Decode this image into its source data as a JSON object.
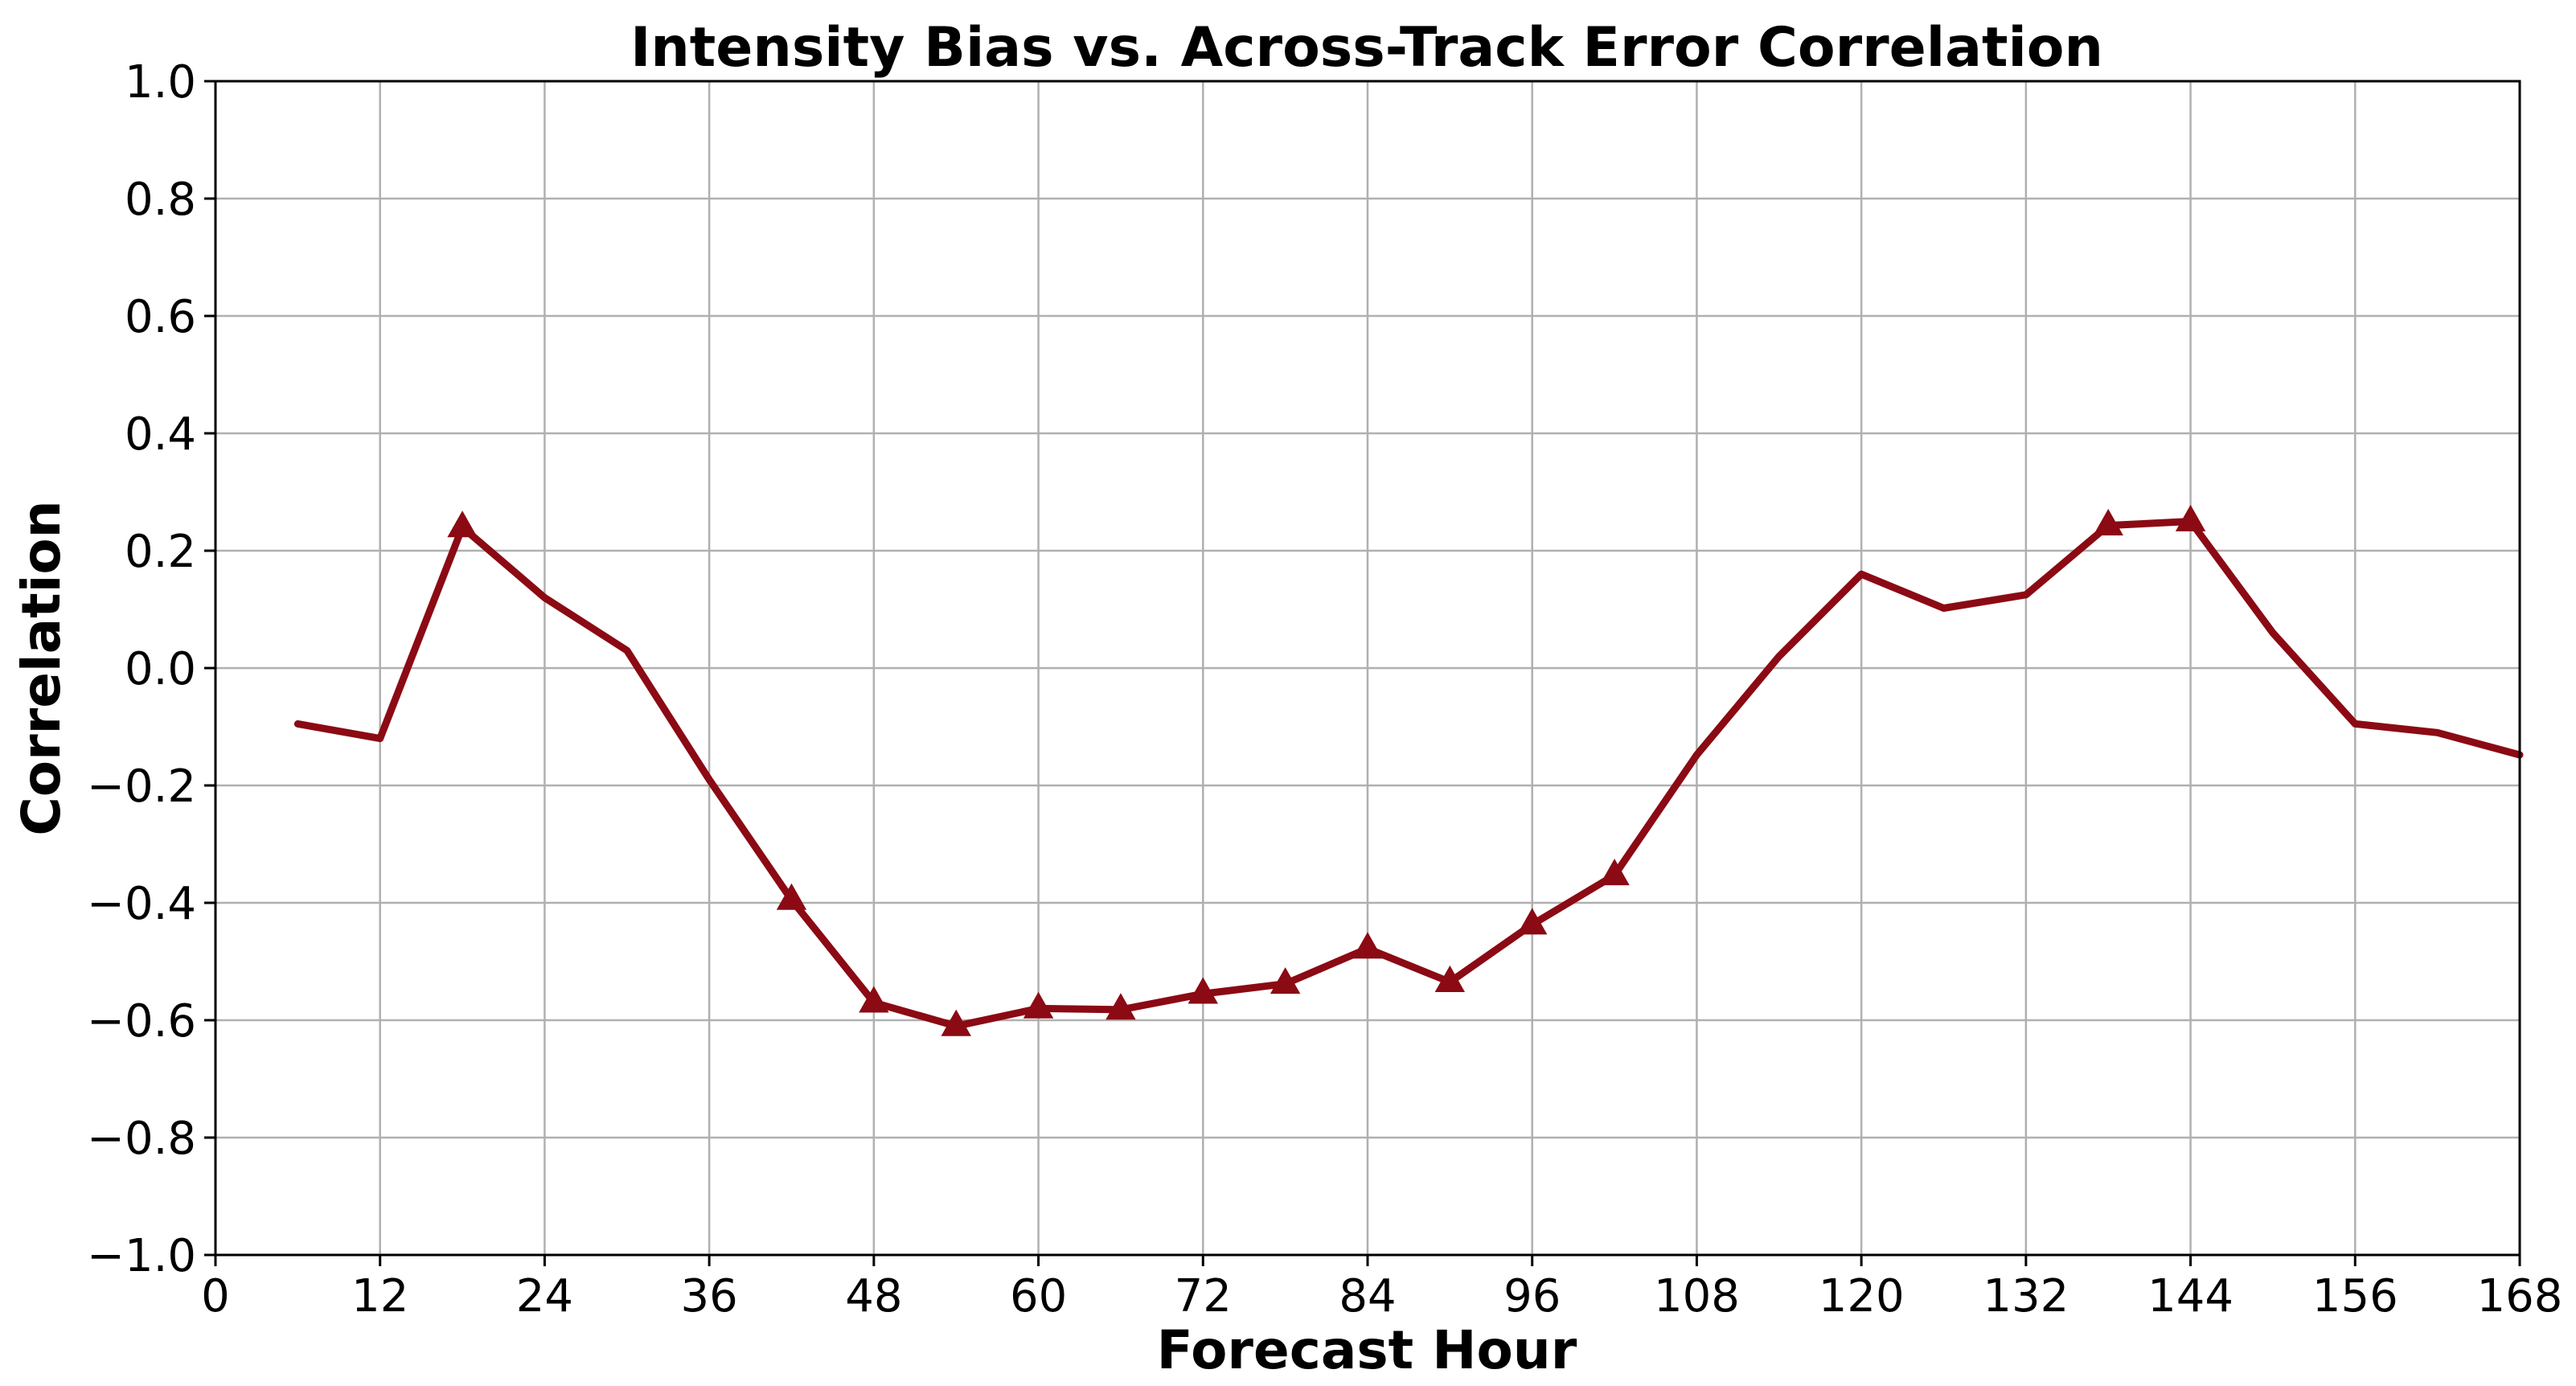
{
  "chart_data": {
    "type": "line",
    "title": "Intensity Bias vs. Across-Track Error Correlation",
    "xlabel": "Forecast Hour",
    "ylabel": "Correlation",
    "xlim": [
      0,
      168
    ],
    "ylim": [
      -1.0,
      1.0
    ],
    "x_ticks": [
      0,
      12,
      24,
      36,
      48,
      60,
      72,
      84,
      96,
      108,
      120,
      132,
      144,
      156,
      168
    ],
    "x_tick_labels": [
      "0",
      "12",
      "24",
      "36",
      "48",
      "60",
      "72",
      "84",
      "96",
      "108",
      "120",
      "132",
      "144",
      "156",
      "168"
    ],
    "y_ticks": [
      -1.0,
      -0.8,
      -0.6,
      -0.4,
      -0.2,
      0.0,
      0.2,
      0.4,
      0.6,
      0.8,
      1.0
    ],
    "y_tick_labels": [
      "−1.0",
      "−0.8",
      "−0.6",
      "−0.4",
      "−0.2",
      "0.0",
      "0.2",
      "0.4",
      "0.6",
      "0.8",
      "1.0"
    ],
    "grid": true,
    "series": [
      {
        "color": "#8b0a14",
        "x": [
          6,
          12,
          18,
          24,
          30,
          36,
          42,
          48,
          54,
          60,
          66,
          72,
          78,
          84,
          90,
          96,
          102,
          108,
          114,
          120,
          126,
          132,
          138,
          144,
          150,
          156,
          162,
          168
        ],
        "y": [
          -0.095,
          -0.12,
          0.24,
          0.12,
          0.03,
          -0.19,
          -0.395,
          -0.57,
          -0.61,
          -0.58,
          -0.582,
          -0.555,
          -0.538,
          -0.478,
          -0.535,
          -0.437,
          -0.353,
          -0.148,
          0.02,
          0.16,
          0.102,
          0.125,
          0.243,
          0.25,
          0.06,
          -0.095,
          -0.11,
          -0.148
        ],
        "marker": "triangle",
        "marked": [
          false,
          false,
          true,
          false,
          false,
          false,
          true,
          true,
          true,
          true,
          true,
          true,
          true,
          true,
          true,
          true,
          true,
          false,
          false,
          false,
          false,
          false,
          true,
          true,
          false,
          false,
          false,
          false
        ]
      }
    ]
  }
}
